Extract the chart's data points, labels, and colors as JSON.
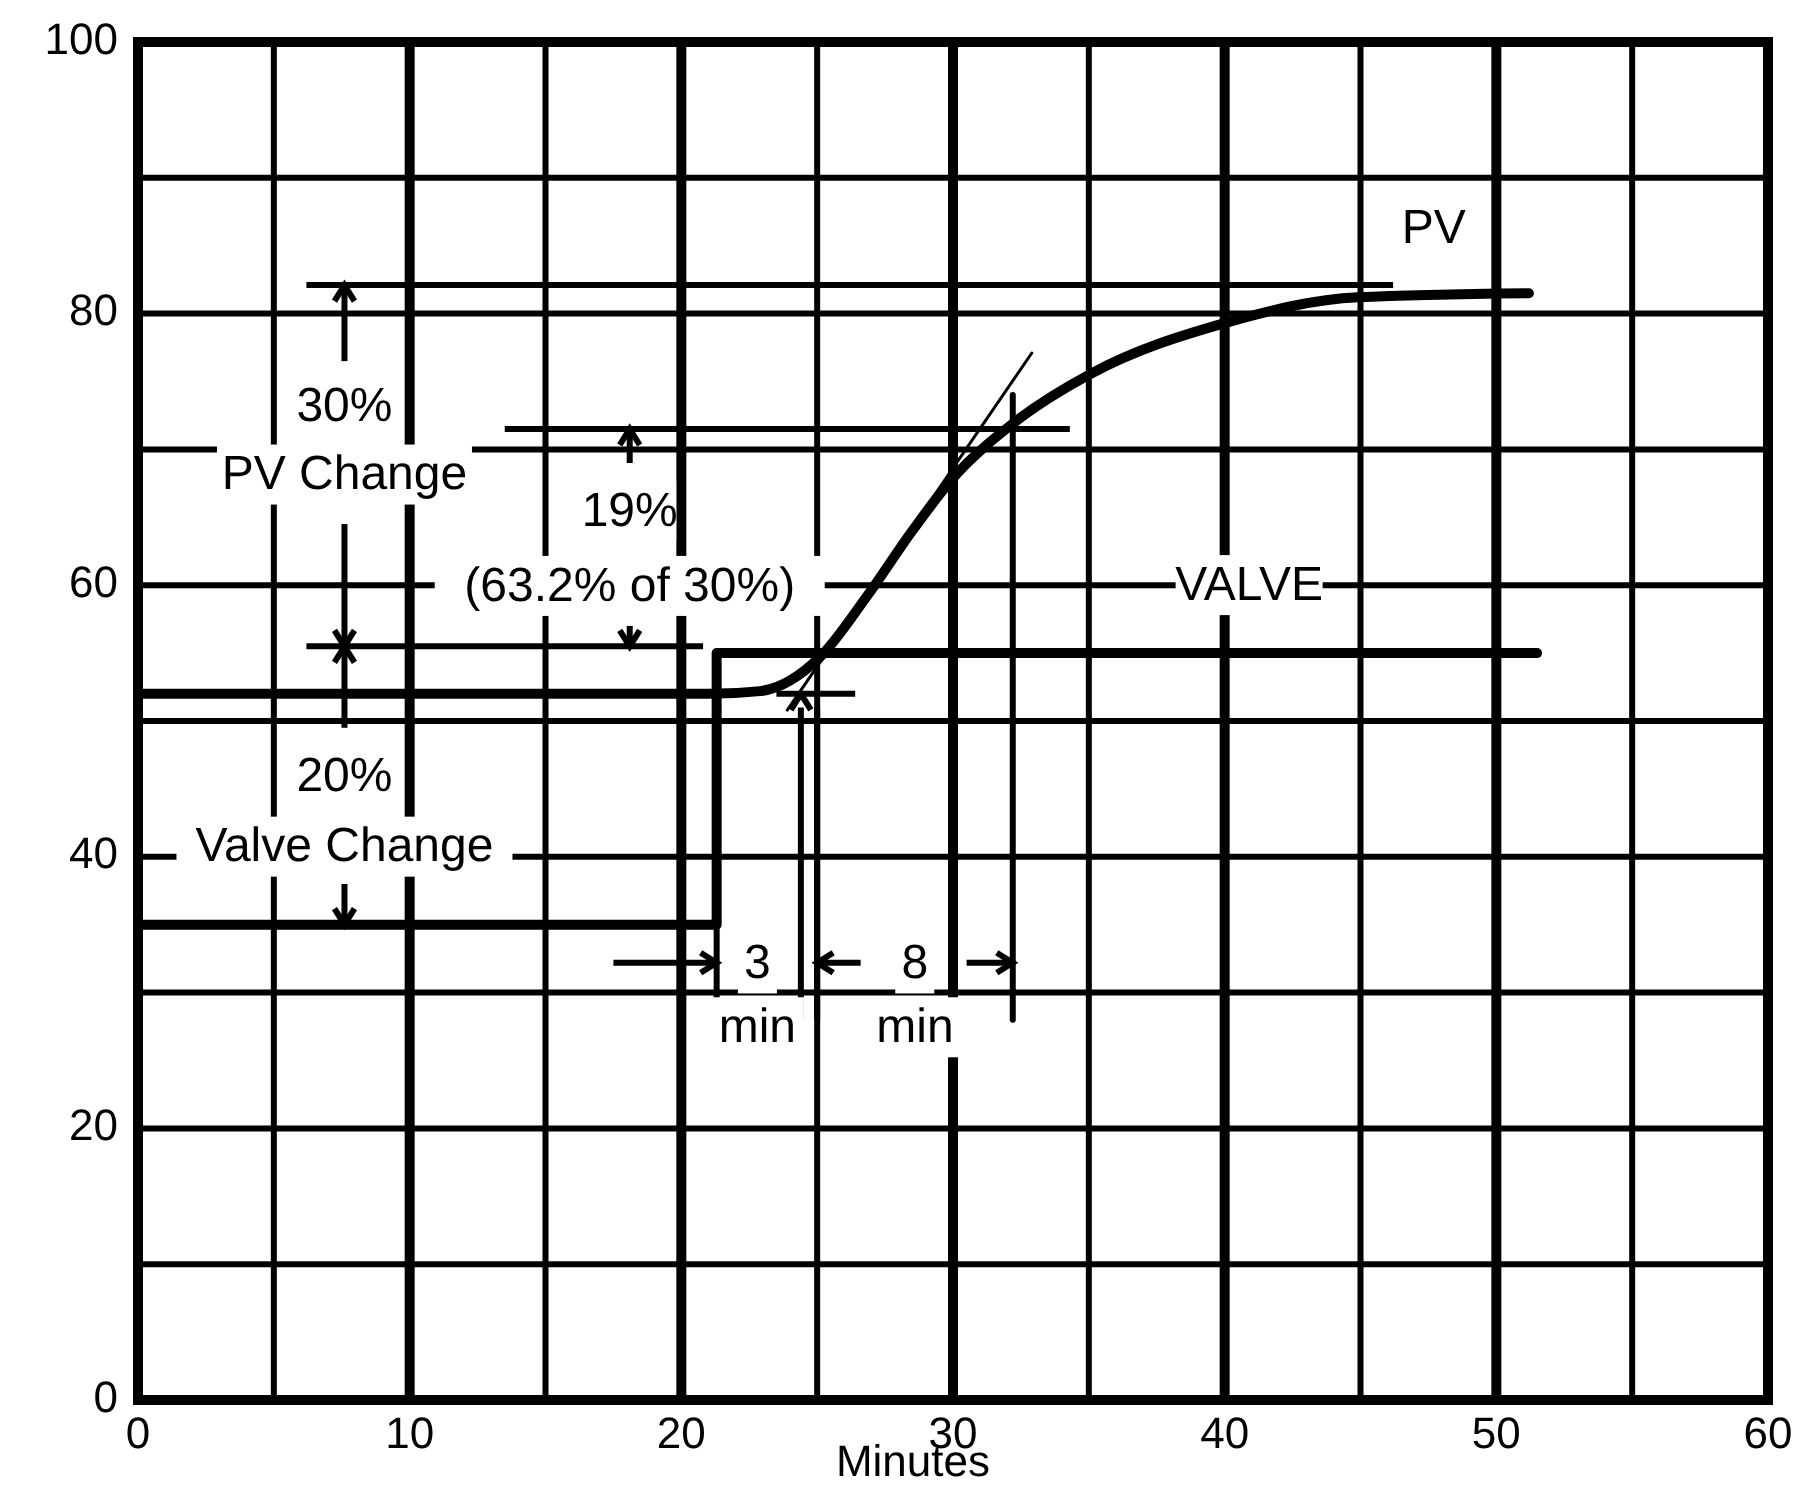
{
  "chart_data": {
    "type": "line",
    "xlabel": "Minutes",
    "xlim": [
      0,
      60
    ],
    "ylim": [
      0,
      100
    ],
    "xticks": [
      0,
      {
        "value": 5,
        "label": null
      },
      10,
      {
        "value": 15,
        "label": null
      },
      20,
      {
        "value": 25,
        "label": null
      },
      30,
      {
        "value": 35,
        "label": null
      },
      40,
      {
        "value": 45,
        "label": null
      },
      50,
      {
        "value": 55,
        "label": null
      },
      60
    ],
    "yticks": [
      0,
      {
        "value": 10,
        "label": null
      },
      20,
      {
        "value": 30,
        "label": null
      },
      40,
      {
        "value": 50,
        "label": null
      },
      60,
      {
        "value": 70,
        "label": null
      },
      80,
      {
        "value": 90,
        "label": null
      },
      100
    ],
    "grid": true,
    "legend": false,
    "marker": "none",
    "line_style": "solid",
    "series": [
      {
        "color": "#000000",
        "x": [
          0,
          21.3,
          21.3,
          51.5
        ],
        "values": [
          35,
          35,
          55,
          55
        ]
      },
      {
        "color": "#000000",
        "x": [
          0,
          21,
          22.9,
          25.1,
          26.8,
          28.5,
          30,
          32.2,
          35.1,
          40,
          44.9,
          51.2
        ],
        "values": [
          52,
          52,
          52.2,
          54.7,
          59.1,
          64,
          67.9,
          71.9,
          75.6,
          79.3,
          81.2,
          81.5
        ]
      },
      {
        "color": "#000000",
        "x": [
          23.9,
          32.9
        ],
        "values": [
          50.8,
          77.1
        ]
      },
      {
        "color": "#000000",
        "x": [
          32.2,
          32.2
        ],
        "values": [
          28,
          74
        ]
      }
    ],
    "annotations": [
      {
        "text": "PV",
        "x": 47.7,
        "y": 81.3
      },
      {
        "text": "VALVE",
        "x": 40.9,
        "y": 55
      },
      "30%",
      "PV Change",
      "19%",
      "(63.2% of 30%)",
      "20%",
      "Valve Change",
      "3",
      "min",
      {
        "text": "8",
        "x": 32.2,
        "y": 32
      },
      "min"
    ]
  }
}
